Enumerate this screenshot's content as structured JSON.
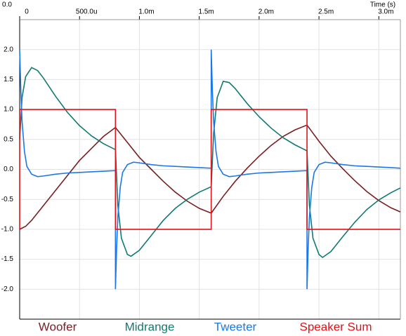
{
  "chart_data": {
    "type": "line",
    "x_label": "Time  (s)",
    "corner_label": "0.0",
    "xlim": [
      0,
      0.00318
    ],
    "ylim": [
      -2.5,
      2.5
    ],
    "xticks": [
      0,
      {
        "value": 0.0005,
        "label": "500.0u"
      },
      {
        "value": 0.001,
        "label": "1.0m"
      },
      {
        "value": 0.0015,
        "label": "1.5m"
      },
      {
        "value": 0.002,
        "label": "2.0m"
      },
      {
        "value": 0.0025,
        "label": "2.5m"
      },
      {
        "value": 0.003,
        "label": "3.0m"
      }
    ],
    "yticks": [
      {
        "value": 2,
        "label": "2.0"
      },
      1.5,
      {
        "value": 1,
        "label": "1.0"
      },
      0.5,
      {
        "value": 0,
        "label": "0.0"
      },
      -0.5,
      {
        "value": -1,
        "label": "-1.0"
      },
      -1.5,
      {
        "value": -2,
        "label": "-2.0"
      }
    ],
    "grid": true,
    "series": [
      {
        "name": "Woofer",
        "color": "#7a1f24",
        "x": [
          0,
          5e-05,
          0.0001,
          0.0002,
          0.0003,
          0.0004,
          0.0005,
          0.0006,
          0.0007,
          0.0008,
          0.0009,
          0.001,
          0.0011,
          0.0012,
          0.0013,
          0.0014,
          0.0015,
          0.0016,
          0.0017,
          0.0018,
          0.0019,
          0.002,
          0.0021,
          0.0022,
          0.0023,
          0.0024,
          0.0025,
          0.0026,
          0.0027,
          0.0028,
          0.0029,
          0.003,
          0.0031,
          0.00318
        ],
        "values": [
          -1,
          -0.95,
          -0.85,
          -0.6,
          -0.35,
          -0.1,
          0.15,
          0.35,
          0.55,
          0.7,
          0.45,
          0.2,
          0.0,
          -0.2,
          -0.38,
          -0.53,
          -0.65,
          -0.73,
          -0.45,
          -0.2,
          0.02,
          0.22,
          0.4,
          0.55,
          0.66,
          0.74,
          0.47,
          0.22,
          0.01,
          -0.19,
          -0.37,
          -0.52,
          -0.64,
          -0.71
        ]
      },
      {
        "name": "Midrange",
        "color": "#137a72",
        "x": [
          0,
          2e-05,
          5e-05,
          0.0001,
          0.00015,
          0.0002,
          0.0003,
          0.0004,
          0.0005,
          0.0006,
          0.0007,
          0.0008,
          0.00082,
          0.00085,
          0.0009,
          0.00093,
          0.001,
          0.0011,
          0.0012,
          0.0013,
          0.0014,
          0.0015,
          0.0016,
          0.00162,
          0.00165,
          0.0017,
          0.00175,
          0.0018,
          0.0019,
          0.002,
          0.0021,
          0.0022,
          0.0023,
          0.0024,
          0.00242,
          0.00245,
          0.0025,
          0.00253,
          0.0026,
          0.0027,
          0.0028,
          0.0029,
          0.003,
          0.0031,
          0.00318
        ],
        "values": [
          0.5,
          1.2,
          1.55,
          1.7,
          1.65,
          1.52,
          1.22,
          0.95,
          0.73,
          0.56,
          0.43,
          0.33,
          -0.6,
          -1.15,
          -1.42,
          -1.45,
          -1.35,
          -1.1,
          -0.85,
          -0.65,
          -0.5,
          -0.38,
          -0.29,
          0.6,
          1.2,
          1.47,
          1.45,
          1.35,
          1.1,
          0.88,
          0.69,
          0.53,
          0.41,
          0.31,
          -0.6,
          -1.15,
          -1.42,
          -1.47,
          -1.37,
          -1.12,
          -0.88,
          -0.67,
          -0.51,
          -0.39,
          -0.31
        ]
      },
      {
        "name": "Tweeter",
        "color": "#1c78e8",
        "x": [
          0,
          1e-05,
          2e-05,
          4e-05,
          6e-05,
          0.0001,
          0.00015,
          0.0002,
          0.0003,
          0.0004,
          0.0005,
          0.0006,
          0.0007,
          0.0008,
          0.0008,
          0.00081,
          0.00082,
          0.00084,
          0.00086,
          0.0009,
          0.00095,
          0.001,
          0.0011,
          0.0012,
          0.0013,
          0.0014,
          0.0015,
          0.0016,
          0.0016,
          0.00161,
          0.00162,
          0.00164,
          0.00166,
          0.0017,
          0.00175,
          0.0018,
          0.0019,
          0.002,
          0.0021,
          0.0022,
          0.0023,
          0.0024,
          0.0024,
          0.00241,
          0.00242,
          0.00244,
          0.00246,
          0.0025,
          0.00255,
          0.0026,
          0.0027,
          0.0028,
          0.0029,
          0.003,
          0.0031,
          0.00318
        ],
        "values": [
          2.0,
          1.3,
          0.8,
          0.3,
          0.05,
          -0.08,
          -0.12,
          -0.11,
          -0.08,
          -0.06,
          -0.05,
          -0.04,
          -0.03,
          -0.02,
          -2.0,
          -1.3,
          -0.8,
          -0.3,
          -0.05,
          0.08,
          0.12,
          0.11,
          0.08,
          0.06,
          0.05,
          0.04,
          0.03,
          0.02,
          2.0,
          1.3,
          0.8,
          0.3,
          0.05,
          -0.08,
          -0.12,
          -0.11,
          -0.08,
          -0.06,
          -0.05,
          -0.04,
          -0.03,
          -0.02,
          -2.0,
          -1.3,
          -0.8,
          -0.3,
          -0.05,
          0.08,
          0.12,
          0.11,
          0.08,
          0.06,
          0.05,
          0.04,
          0.03,
          0.02
        ]
      },
      {
        "name": "Speaker Sum",
        "color": "#e0141a",
        "x": [
          0,
          0,
          0.0008,
          0.0008,
          0.0016,
          0.0016,
          0.0024,
          0.0024,
          0.00318
        ],
        "values": [
          -1,
          1,
          1,
          -1,
          -1,
          1,
          1,
          -1,
          -1
        ]
      }
    ]
  }
}
